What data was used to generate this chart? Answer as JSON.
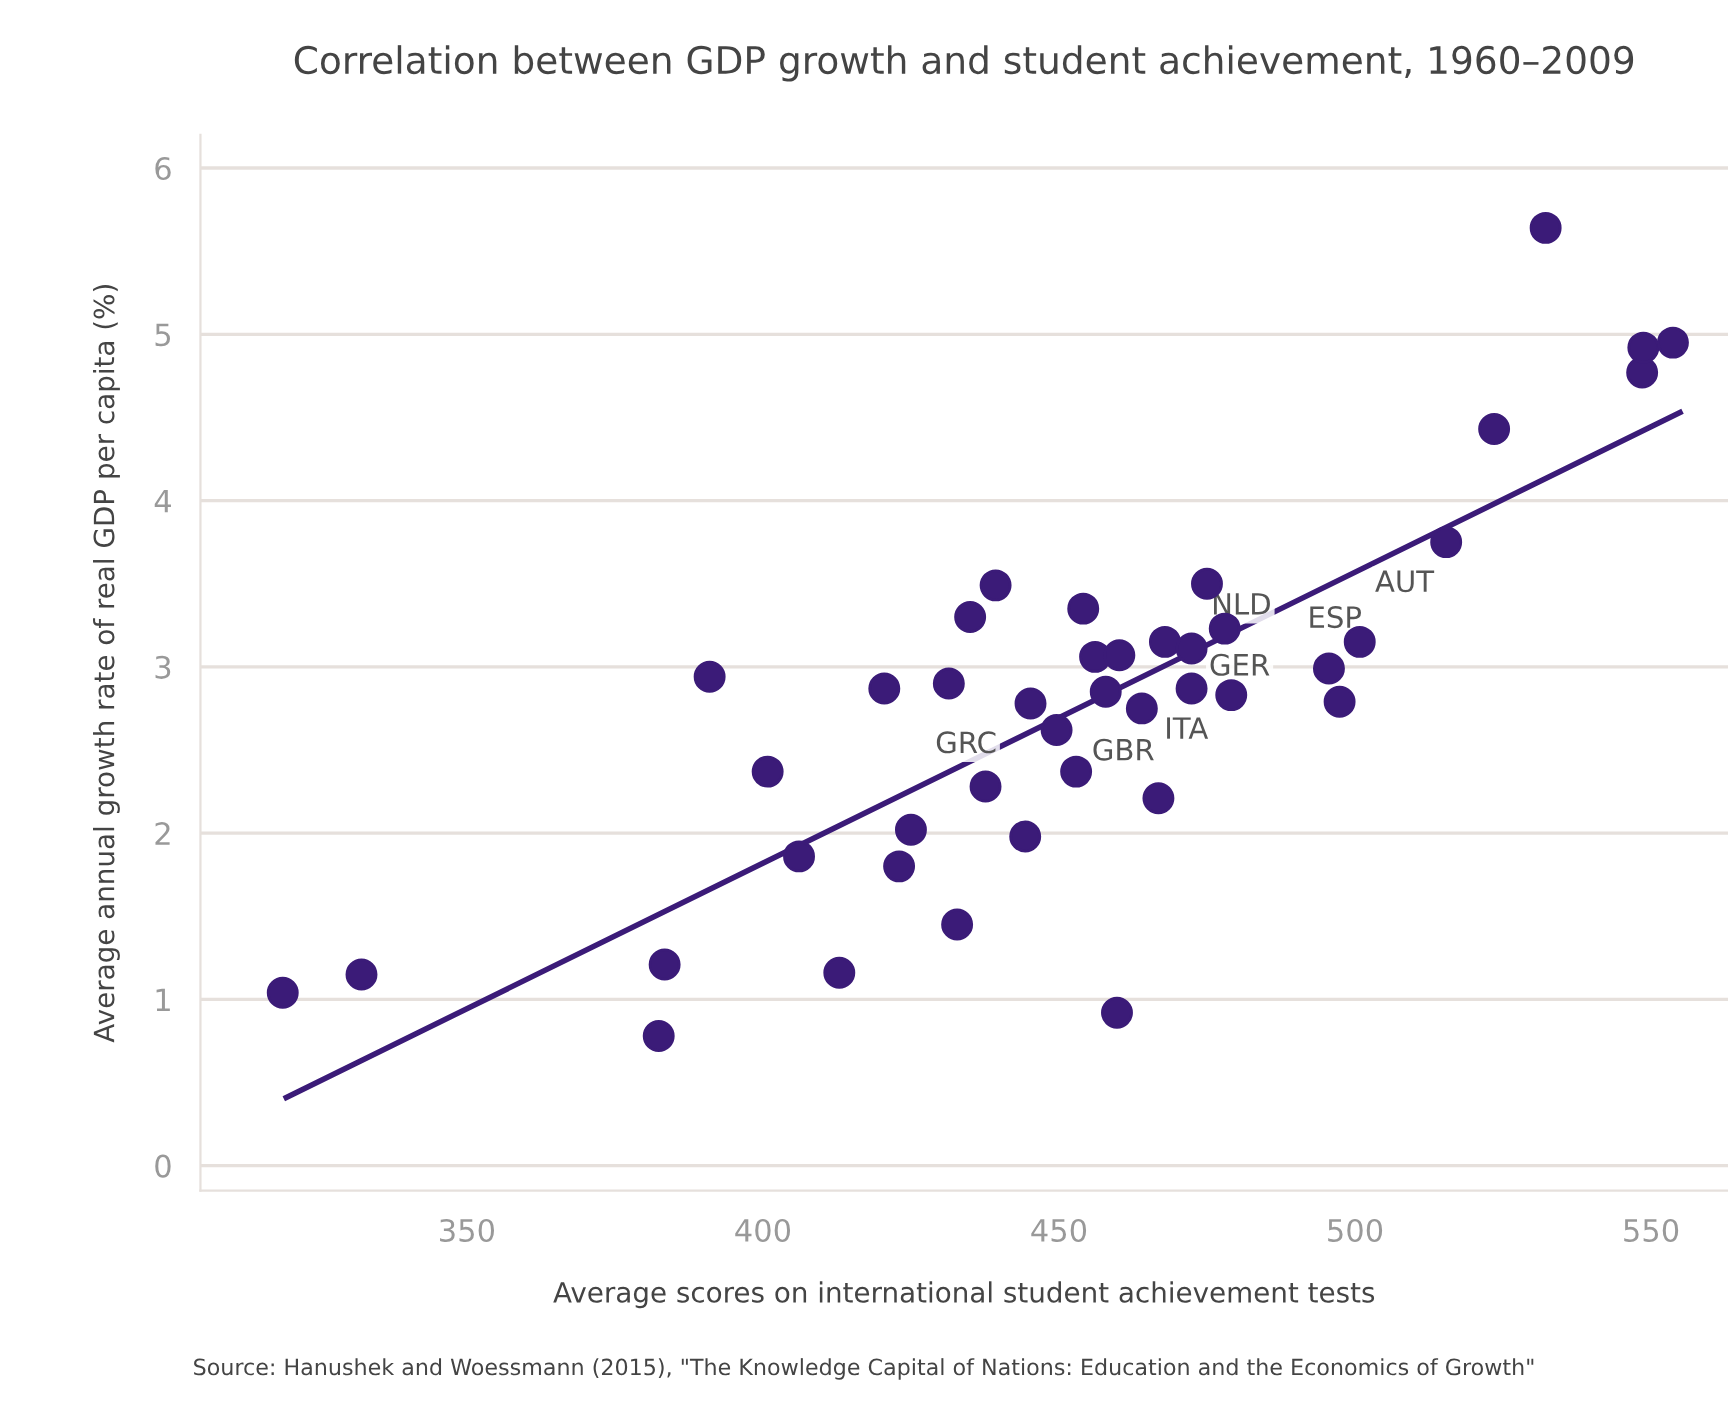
{
  "chart_data": {
    "type": "scatter",
    "title": "Correlation between GDP growth and student achievement, 1960–2009",
    "xlabel": "Average scores on international student achievement tests",
    "ylabel": "Average annual growth rate of real GDP per capita (%)",
    "xlim": [
      305,
      563
    ],
    "xticks": [
      350,
      400,
      450,
      500,
      550
    ],
    "ylim": [
      -0.15,
      6.2
    ],
    "yticks": [
      0,
      1,
      2,
      3,
      4,
      5,
      6
    ],
    "grid": "y",
    "series": [
      {
        "marker": "circle",
        "color": "#3b1b78",
        "x": [
          318.9,
          332.2,
          383.4,
          382.4,
          391.0,
          400.8,
          406.1,
          412.9,
          420.5,
          423.0,
          425.0,
          431.4,
          432.8,
          435.0,
          437.6,
          439.3,
          444.3,
          445.2,
          449.6,
          452.9,
          454.1,
          456.1,
          457.9,
          459.8,
          460.2,
          464.0,
          466.8,
          467.9,
          472.4,
          472.4,
          475.0,
          478.0,
          479.1,
          495.6,
          497.4,
          500.8,
          515.4,
          523.5,
          532.2,
          548.5,
          548.7,
          553.7
        ],
        "values": [
          1.04,
          1.15,
          1.21,
          0.78,
          2.94,
          2.37,
          1.86,
          1.16,
          2.87,
          1.8,
          2.02,
          2.9,
          1.45,
          3.3,
          2.28,
          3.49,
          1.98,
          2.78,
          2.62,
          2.37,
          3.35,
          3.06,
          2.85,
          0.92,
          3.07,
          2.75,
          2.21,
          3.15,
          3.11,
          2.87,
          3.5,
          3.23,
          2.83,
          2.99,
          2.79,
          3.15,
          3.75,
          4.43,
          5.64,
          4.77,
          4.92,
          4.95
        ]
      },
      {
        "type": "line",
        "color": "#3b1b78",
        "x": [
          319.5,
          554.9
        ],
        "values": [
          0.41,
          4.53
        ]
      }
    ],
    "annotations": [
      {
        "text": "GRC",
        "x": 437.6,
        "y": 2.28
      },
      {
        "text": "GBR",
        "x": 449.6,
        "y": 2.62
      },
      {
        "text": "ITA",
        "x": 464.0,
        "y": 2.75
      },
      {
        "text": "GER",
        "x": 479.1,
        "y": 2.83
      },
      {
        "text": "NLD",
        "x": 478.0,
        "y": 3.23
      },
      {
        "text": "ESP",
        "x": 500.8,
        "y": 3.15
      },
      {
        "text": "AUT",
        "x": 515.4,
        "y": 3.75
      },
      "Source: Hanushek and Woessmann (2015), \"The Knowledge Capital of Nations: Education and the Economics of Growth\""
    ]
  }
}
